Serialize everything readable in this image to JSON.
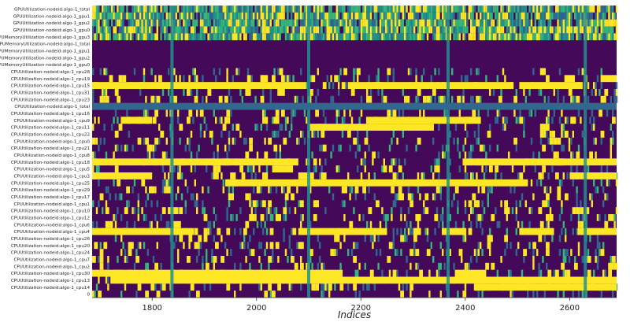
{
  "chart_data": {
    "type": "heatmap",
    "title": "",
    "xlabel": "Indices",
    "ylabel": "",
    "xlim": [
      1685,
      2690
    ],
    "x_ticks": [
      1800,
      2000,
      2200,
      2400,
      2600
    ],
    "colormap": [
      "#440154",
      "#31688e",
      "#21918c",
      "#35b779",
      "#fde725"
    ],
    "background_color": "#45095a",
    "rows": [
      "GPUUtilization-nodeid:algo-1_total",
      "GPUUtilization-nodeid:algo-1_gpu1",
      "GPUUtilization-nodeid:algo-1_gpu2",
      "GPUUtilization-nodeid:algo-1_gpu0",
      "GPUMemoryUtilization-nodeid:algo-1_gpu3",
      "GPUMemoryUtilization-nodeid:algo-1_total",
      "GPUMemoryUtilization-nodeid:algo-1_gpu1",
      "GPUMemoryUtilization-nodeid:algo-1_gpu2",
      "GPUMemoryUtilization-nodeid:algo-1_gpu0",
      "CPUUtilization-nodeid:algo-1_cpu28",
      "CPUUtilization-nodeid:algo-1_cpu19",
      "CPUUtilization-nodeid:algo-1_cpu15",
      "CPUUtilization-nodeid:algo-1_cpu31",
      "CPUUtilization-nodeid:algo-1_cpu23",
      "CPUUtilization-nodeid:algo-1_total",
      "CPUUtilization-nodeid:algo-1_cpu16",
      "CPUUtilization-nodeid:algo-1_cpu9",
      "CPUUtilization-nodeid:algo-1_cpu11",
      "CPUUtilization-nodeid:algo-1_cpu22",
      "CPUUtilization-nodeid:algo-1_cpu0",
      "CPUUtilization-nodeid:algo-1_cpu21",
      "CPUUtilization-nodeid:algo-1_cpu8",
      "CPUUtilization-nodeid:algo-1_cpu18",
      "CPUUtilization-nodeid:algo-1_cpu5",
      "CPUUtilization-nodeid:algo-1_cpu3",
      "CPUUtilization-nodeid:algo-1_cpu25",
      "CPUUtilization-nodeid:algo-1_cpu29",
      "CPUUtilization-nodeid:algo-1_cpu17",
      "CPUUtilization-nodeid:algo-1_cpu1",
      "CPUUtilization-nodeid:algo-1_cpu10",
      "CPUUtilization-nodeid:algo-1_cpu12",
      "CPUUtilization-nodeid:algo-1_cpu6",
      "CPUUtilization-nodeid:algo-1_cpu4",
      "CPUUtilization-nodeid:algo-1_cpu26",
      "CPUUtilization-nodeid:algo-1_cpu20",
      "CPUUtilization-nodeid:algo-1_cpu24",
      "CPUUtilization-nodeid:algo-1_cpu7",
      "CPUUtilization-nodeid:algo-1_cpu2",
      "CPUUtilization-nodeid:algo-1_cpu30",
      "CPUUtilization-nodeid:algo-1_cpu13",
      "CPUUtilization-nodeid:algo-1_cpu14",
      "0"
    ],
    "full_column_highlights": [
      1838,
      2100,
      2367,
      2630
    ],
    "row_styles": {
      "0": "noisy",
      "1": "noisy",
      "2": "noisy",
      "3": "noisy",
      "4": "noisy",
      "5": "dark",
      "6": "dark",
      "7": "dark",
      "8": "dark",
      "14": "uniform_teal"
    },
    "sustained_high_segments": [
      {
        "row": 10,
        "start": 2590,
        "end": 2610
      },
      {
        "row": 10,
        "start": 2660,
        "end": 2690
      },
      {
        "row": 11,
        "start": 1685,
        "end": 2095
      },
      {
        "row": 11,
        "start": 2175,
        "end": 2490
      },
      {
        "row": 11,
        "start": 2510,
        "end": 2625
      },
      {
        "row": 16,
        "start": 1740,
        "end": 1800
      },
      {
        "row": 16,
        "start": 2210,
        "end": 2430
      },
      {
        "row": 17,
        "start": 2100,
        "end": 2340
      },
      {
        "row": 22,
        "start": 1685,
        "end": 2080
      },
      {
        "row": 22,
        "start": 2395,
        "end": 2690
      },
      {
        "row": 23,
        "start": 2030,
        "end": 2070
      },
      {
        "row": 24,
        "start": 1685,
        "end": 1800
      },
      {
        "row": 24,
        "start": 2080,
        "end": 2110
      },
      {
        "row": 24,
        "start": 2600,
        "end": 2690
      },
      {
        "row": 25,
        "start": 1940,
        "end": 2520
      },
      {
        "row": 29,
        "start": 1830,
        "end": 1850
      },
      {
        "row": 32,
        "start": 1685,
        "end": 1880
      },
      {
        "row": 32,
        "start": 2080,
        "end": 2250
      },
      {
        "row": 32,
        "start": 2355,
        "end": 2400
      },
      {
        "row": 32,
        "start": 2510,
        "end": 2570
      },
      {
        "row": 32,
        "start": 2615,
        "end": 2690
      },
      {
        "row": 38,
        "start": 1685,
        "end": 2165
      },
      {
        "row": 38,
        "start": 2380,
        "end": 2440
      },
      {
        "row": 39,
        "start": 1720,
        "end": 2690
      },
      {
        "row": 40,
        "start": 2420,
        "end": 2690
      }
    ]
  }
}
